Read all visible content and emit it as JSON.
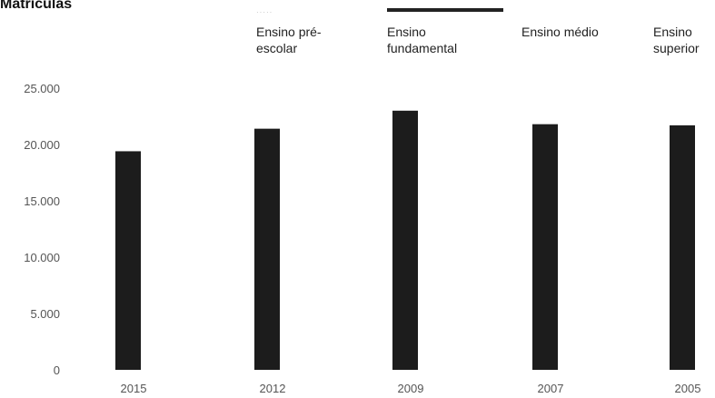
{
  "chart_data": {
    "type": "bar",
    "title": "Matrículas",
    "categories": [
      "2015",
      "2012",
      "2009",
      "2007",
      "2005"
    ],
    "values": [
      19400,
      21400,
      23000,
      21800,
      21700
    ],
    "legend": [
      "Ensino pré-escolar",
      "Ensino fundamental",
      "Ensino médio",
      "Ensino superior"
    ],
    "yticks": [
      "25.000",
      "20.000",
      "15.000",
      "10.000",
      "5.000",
      "0"
    ],
    "ylim": [
      0,
      25000
    ],
    "grid": false,
    "legend_position": "top",
    "bar_color": "#1c1c1c"
  }
}
